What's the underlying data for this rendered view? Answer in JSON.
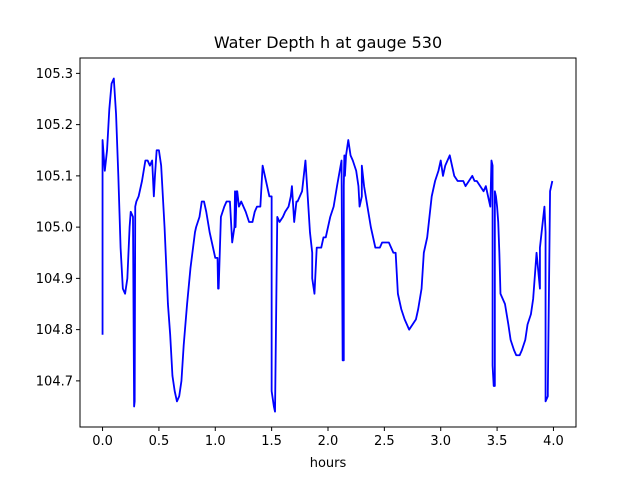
{
  "chart_data": {
    "type": "line",
    "title": "Water Depth h at gauge 530",
    "xlabel": "hours",
    "ylabel": "",
    "xlim": [
      -0.2,
      4.2
    ],
    "ylim": [
      104.61,
      105.33
    ],
    "xticks": [
      0.0,
      0.5,
      1.0,
      1.5,
      2.0,
      2.5,
      3.0,
      3.5,
      4.0
    ],
    "xtick_labels": [
      "0.0",
      "0.5",
      "1.0",
      "1.5",
      "2.0",
      "2.5",
      "3.0",
      "3.5",
      "4.0"
    ],
    "yticks": [
      104.7,
      104.8,
      104.9,
      105.0,
      105.1,
      105.2,
      105.3
    ],
    "ytick_labels": [
      "104.7",
      "104.8",
      "104.9",
      "105.0",
      "105.1",
      "105.2",
      "105.3"
    ],
    "grid": false,
    "series": [
      {
        "color": "#0000ff",
        "x": [
          0.0,
          0.0,
          0.02,
          0.04,
          0.06,
          0.08,
          0.1,
          0.12,
          0.14,
          0.16,
          0.18,
          0.2,
          0.22,
          0.24,
          0.25,
          0.27,
          0.28,
          0.285,
          0.29,
          0.3,
          0.32,
          0.35,
          0.38,
          0.4,
          0.42,
          0.44,
          0.455,
          0.465,
          0.48,
          0.5,
          0.52,
          0.55,
          0.58,
          0.6,
          0.62,
          0.64,
          0.66,
          0.68,
          0.7,
          0.72,
          0.75,
          0.78,
          0.82,
          0.83,
          0.86,
          0.88,
          0.9,
          0.92,
          0.95,
          0.98,
          1.0,
          1.02,
          1.025,
          1.03,
          1.05,
          1.08,
          1.1,
          1.13,
          1.15,
          1.17,
          1.175,
          1.18,
          1.19,
          1.195,
          1.2,
          1.21,
          1.23,
          1.25,
          1.27,
          1.3,
          1.33,
          1.35,
          1.37,
          1.4,
          1.42,
          1.45,
          1.48,
          1.5,
          1.5,
          1.52,
          1.53,
          1.55,
          1.57,
          1.6,
          1.62,
          1.65,
          1.67,
          1.68,
          1.7,
          1.72,
          1.73,
          1.75,
          1.77,
          1.8,
          1.82,
          1.84,
          1.85,
          1.86,
          1.86,
          1.88,
          1.9,
          1.92,
          1.94,
          1.96,
          1.98,
          2.0,
          2.02,
          2.05,
          2.08,
          2.12,
          2.13,
          2.14,
          2.14,
          2.145,
          2.15,
          2.16,
          2.18,
          2.2,
          2.22,
          2.25,
          2.27,
          2.28,
          2.3,
          2.3,
          2.32,
          2.35,
          2.38,
          2.4,
          2.42,
          2.44,
          2.46,
          2.48,
          2.5,
          2.52,
          2.54,
          2.56,
          2.58,
          2.6,
          2.62,
          2.65,
          2.68,
          2.7,
          2.72,
          2.75,
          2.78,
          2.8,
          2.83,
          2.85,
          2.88,
          2.9,
          2.92,
          2.95,
          2.98,
          3.0,
          3.02,
          3.04,
          3.06,
          3.08,
          3.1,
          3.12,
          3.15,
          3.18,
          3.2,
          3.22,
          3.25,
          3.28,
          3.3,
          3.32,
          3.35,
          3.38,
          3.4,
          3.42,
          3.44,
          3.45,
          3.46,
          3.46,
          3.47,
          3.48,
          3.48,
          3.49,
          3.5,
          3.51,
          3.52,
          3.53,
          3.55,
          3.57,
          3.6,
          3.62,
          3.65,
          3.67,
          3.7,
          3.72,
          3.75,
          3.77,
          3.8,
          3.82,
          3.85,
          3.88,
          3.88,
          3.9,
          3.92,
          3.93,
          3.93,
          3.95,
          3.95,
          3.97,
          3.99
        ],
        "y": [
          104.79,
          105.17,
          105.11,
          105.15,
          105.23,
          105.28,
          105.29,
          105.22,
          105.1,
          104.96,
          104.88,
          104.87,
          104.9,
          105.0,
          105.03,
          105.02,
          104.65,
          104.66,
          105.04,
          105.05,
          105.06,
          105.09,
          105.13,
          105.13,
          105.12,
          105.13,
          105.06,
          105.1,
          105.15,
          105.15,
          105.12,
          105.0,
          104.85,
          104.79,
          104.71,
          104.68,
          104.66,
          104.67,
          104.7,
          104.77,
          104.85,
          104.92,
          104.99,
          105.0,
          105.02,
          105.05,
          105.05,
          105.03,
          104.99,
          104.96,
          104.94,
          104.94,
          104.88,
          104.88,
          105.02,
          105.04,
          105.05,
          105.05,
          104.97,
          105.0,
          105.07,
          105.0,
          105.07,
          105.07,
          105.06,
          105.04,
          105.05,
          105.04,
          105.03,
          105.01,
          105.01,
          105.03,
          105.04,
          105.04,
          105.12,
          105.09,
          105.06,
          105.06,
          104.68,
          104.65,
          104.64,
          105.02,
          105.01,
          105.02,
          105.03,
          105.04,
          105.06,
          105.08,
          105.01,
          105.05,
          105.05,
          105.06,
          105.07,
          105.13,
          105.06,
          104.99,
          104.97,
          104.95,
          104.9,
          104.87,
          104.96,
          104.96,
          104.96,
          104.98,
          104.98,
          105.0,
          105.02,
          105.04,
          105.08,
          105.13,
          104.74,
          104.74,
          105.08,
          105.14,
          105.1,
          105.14,
          105.17,
          105.14,
          105.13,
          105.11,
          105.08,
          105.04,
          105.06,
          105.12,
          105.08,
          105.04,
          105.0,
          104.98,
          104.96,
          104.96,
          104.96,
          104.97,
          104.97,
          104.97,
          104.97,
          104.96,
          104.95,
          104.95,
          104.87,
          104.84,
          104.82,
          104.81,
          104.8,
          104.81,
          104.82,
          104.84,
          104.88,
          104.95,
          104.98,
          105.02,
          105.06,
          105.09,
          105.11,
          105.13,
          105.1,
          105.12,
          105.13,
          105.14,
          105.12,
          105.1,
          105.09,
          105.09,
          105.09,
          105.08,
          105.09,
          105.1,
          105.09,
          105.09,
          105.08,
          105.07,
          105.08,
          105.06,
          105.04,
          105.13,
          105.12,
          104.73,
          104.69,
          104.69,
          105.07,
          105.06,
          105.04,
          105.01,
          104.95,
          104.87,
          104.86,
          104.85,
          104.81,
          104.78,
          104.76,
          104.75,
          104.75,
          104.76,
          104.78,
          104.81,
          104.83,
          104.86,
          104.95,
          104.88,
          104.96,
          105.0,
          105.04,
          104.99,
          104.66,
          104.67,
          104.68,
          105.07,
          105.09
        ]
      }
    ]
  }
}
